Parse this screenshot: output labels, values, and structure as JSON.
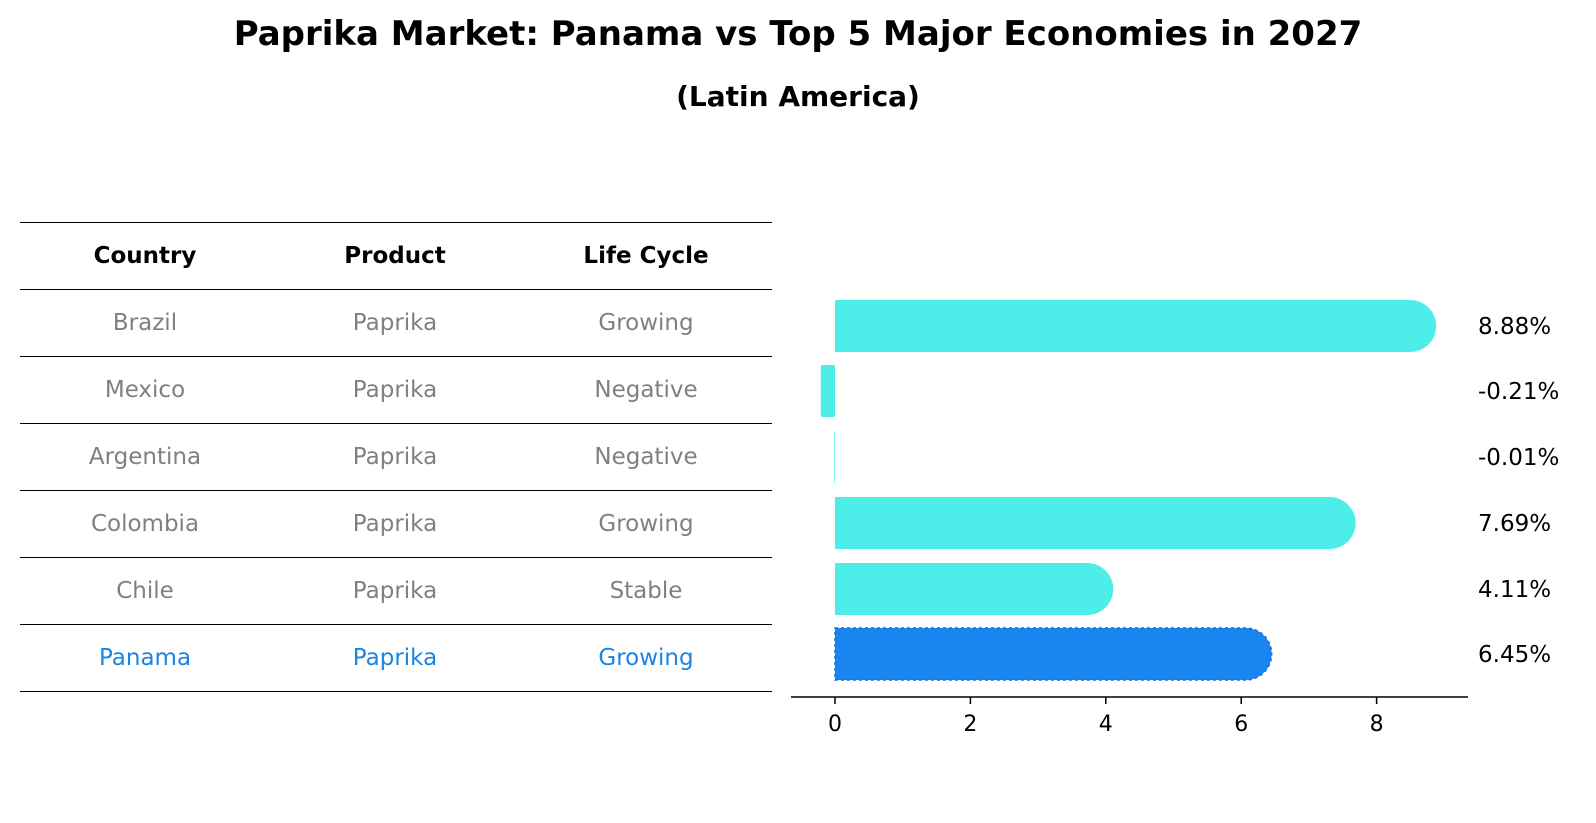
{
  "title": "Paprika Market: Panama vs Top 5 Major Economies in 2027",
  "subtitle": "(Latin America)",
  "table": {
    "headers": [
      "Country",
      "Product",
      "Life Cycle"
    ],
    "rows": [
      [
        "Brazil",
        "Paprika",
        "Growing"
      ],
      [
        "Mexico",
        "Paprika",
        "Negative"
      ],
      [
        "Argentina",
        "Paprika",
        "Negative"
      ],
      [
        "Colombia",
        "Paprika",
        "Growing"
      ],
      [
        "Chile",
        "Paprika",
        "Stable"
      ],
      [
        "Panama",
        "Paprika",
        "Growing"
      ]
    ],
    "highlight_row": 5
  },
  "colors": {
    "bar": "#4deeea",
    "highlight": "#1a85f0",
    "highlight_text": "#1a85e0",
    "muted_text": "#808080"
  },
  "chart_data": {
    "type": "bar",
    "orientation": "horizontal",
    "categories": [
      "Brazil",
      "Mexico",
      "Argentina",
      "Colombia",
      "Chile",
      "Panama"
    ],
    "values": [
      8.88,
      -0.21,
      -0.01,
      7.69,
      4.11,
      6.45
    ],
    "value_labels": [
      "8.88%",
      "-0.21%",
      "-0.01%",
      "7.69%",
      "4.11%",
      "6.45%"
    ],
    "highlight_category": "Panama",
    "xticks": [
      0,
      2,
      4,
      6,
      8
    ],
    "xlim": [
      -0.65,
      9.35
    ],
    "grid": false
  }
}
